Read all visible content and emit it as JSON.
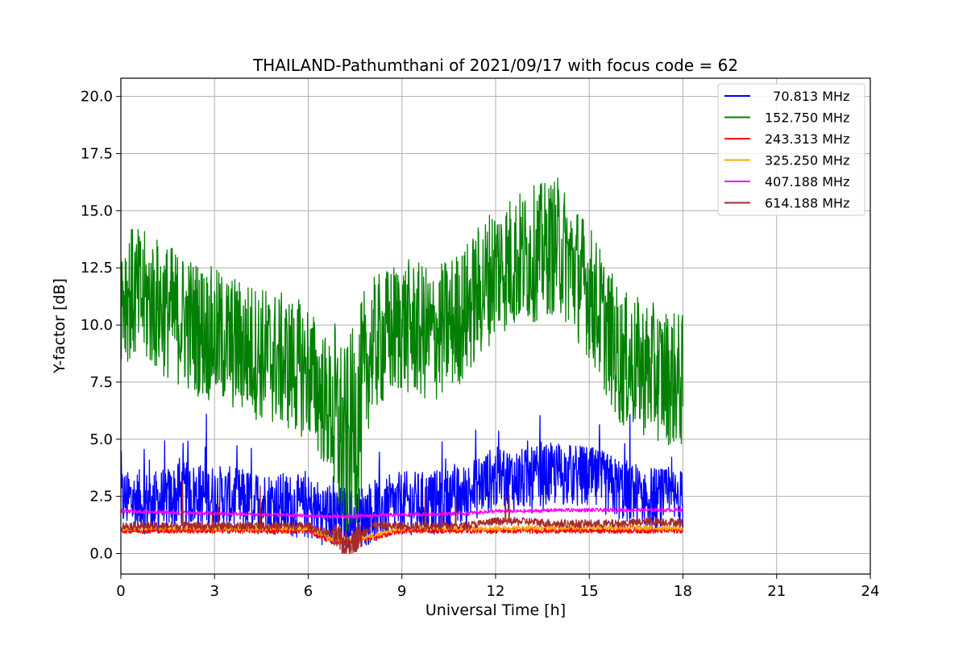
{
  "chart_data": {
    "type": "line",
    "title": "THAILAND-Pathumthani of 2021/09/17 with focus code = 62",
    "xlabel": "Universal Time [h]",
    "ylabel": "Y-factor [dB]",
    "xlim": [
      0,
      24
    ],
    "ylim": [
      -0.9,
      20.8
    ],
    "xticks": [
      0,
      3,
      6,
      9,
      12,
      15,
      18,
      21,
      24
    ],
    "xtick_labels": [
      "0",
      "3",
      "6",
      "9",
      "12",
      "15",
      "18",
      "21",
      "24"
    ],
    "yticks": [
      0,
      2.5,
      5,
      7.5,
      10,
      12.5,
      15,
      17.5,
      20
    ],
    "ytick_labels": [
      "0.0",
      "2.5",
      "5.0",
      "7.5",
      "10.0",
      "12.5",
      "15.0",
      "17.5",
      "20.0"
    ],
    "grid": true,
    "legend_position": "top-right",
    "series": [
      {
        "name": "  70.813 MHz",
        "color": "#0000ff",
        "x": [
          0,
          1,
          2,
          3,
          4,
          5,
          6,
          6.8,
          7.5,
          8,
          9,
          10,
          11,
          11.5,
          12,
          13,
          14,
          15,
          16,
          17,
          18
        ],
        "y": [
          2.4,
          2.2,
          2.6,
          2.5,
          2.3,
          2.2,
          2.0,
          1.6,
          1.5,
          1.8,
          2.2,
          2.2,
          2.5,
          3.0,
          3.3,
          3.2,
          3.5,
          3.3,
          2.8,
          2.4,
          2.3
        ]
      },
      {
        "name": "152.750 MHz",
        "color": "#008000",
        "x": [
          0,
          1,
          2,
          3,
          4,
          5,
          6,
          6.8,
          7.2,
          7.7,
          8,
          9,
          10,
          11,
          12,
          13,
          14,
          15,
          16,
          17,
          18
        ],
        "y": [
          11.5,
          11.0,
          10.2,
          9.5,
          9.0,
          8.5,
          8.0,
          6.0,
          4.5,
          6.5,
          9.0,
          10.0,
          9.5,
          10.5,
          12.5,
          13.0,
          13.5,
          11.5,
          8.5,
          8.0,
          7.5
        ]
      },
      {
        "name": "243.313 MHz",
        "color": "#ff0000",
        "x": [
          0,
          3,
          6,
          6.8,
          7.8,
          9,
          12,
          15,
          18
        ],
        "y": [
          1.0,
          1.0,
          1.0,
          0.5,
          0.6,
          1.0,
          1.0,
          1.0,
          1.0
        ]
      },
      {
        "name": "325.250 MHz",
        "color": "#ffa500",
        "x": [
          0,
          3,
          6,
          6.8,
          7.8,
          9,
          12,
          15,
          18
        ],
        "y": [
          1.1,
          1.1,
          1.1,
          0.6,
          0.7,
          1.1,
          1.1,
          1.15,
          1.1
        ]
      },
      {
        "name": "407.188 MHz",
        "color": "#ff00ff",
        "x": [
          0,
          3,
          6,
          7,
          8,
          9,
          10,
          11,
          12,
          13,
          14,
          15,
          16,
          17,
          18
        ],
        "y": [
          1.85,
          1.75,
          1.65,
          1.6,
          1.65,
          1.7,
          1.72,
          1.75,
          1.85,
          1.85,
          1.9,
          1.9,
          1.9,
          1.9,
          1.9
        ]
      },
      {
        "name": "614.188 MHz",
        "color": "#a52a2a",
        "x": [
          0,
          3,
          6,
          6.8,
          7.2,
          7.7,
          8,
          9,
          11,
          11.5,
          12,
          13,
          14,
          15,
          16,
          17,
          18
        ],
        "y": [
          1.2,
          1.2,
          1.2,
          0.8,
          0.4,
          0.8,
          1.2,
          1.2,
          1.2,
          1.3,
          1.4,
          1.4,
          1.3,
          1.3,
          1.3,
          1.4,
          1.35
        ]
      }
    ]
  }
}
